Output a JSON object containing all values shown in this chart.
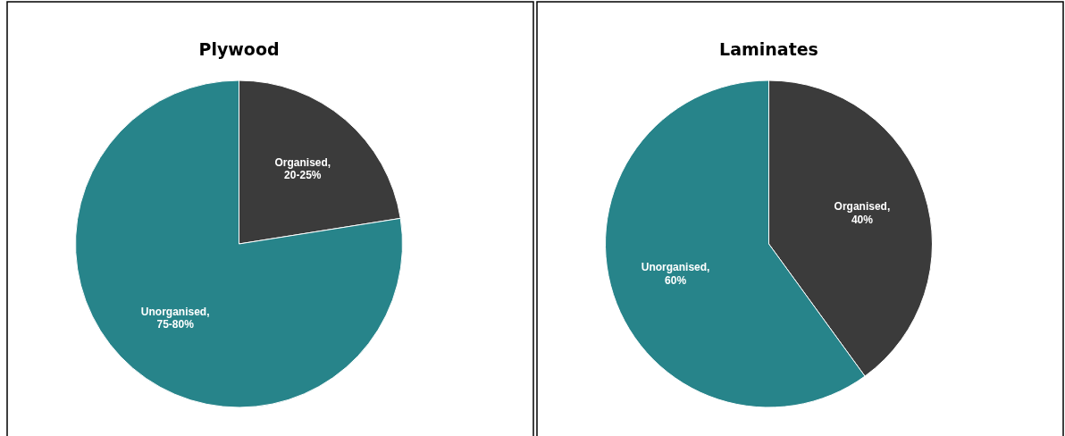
{
  "chart_data": [
    {
      "type": "pie",
      "title": "Plywood",
      "categories": [
        "Organised, 20-25%",
        "Unorganised, 75-80%"
      ],
      "values": [
        22.5,
        77.5
      ],
      "colors": [
        "#3b3b3b",
        "#27848a"
      ],
      "legend": false
    },
    {
      "type": "pie",
      "title": "Laminates",
      "categories": [
        "Organised, 40%",
        "Unorganised, 60%"
      ],
      "values": [
        40,
        60
      ],
      "colors": [
        "#3b3b3b",
        "#27848a"
      ],
      "legend": false
    }
  ]
}
